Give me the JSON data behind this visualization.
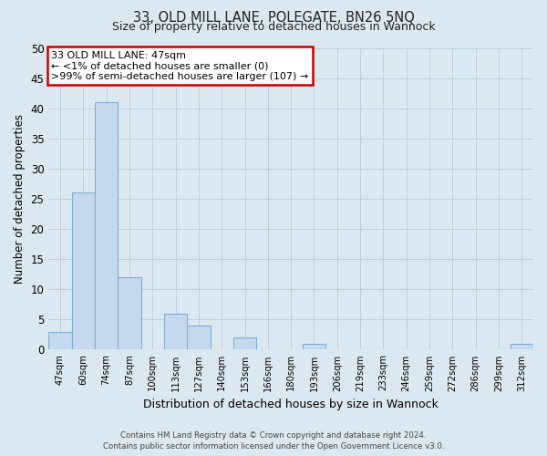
{
  "title": "33, OLD MILL LANE, POLEGATE, BN26 5NQ",
  "subtitle": "Size of property relative to detached houses in Wannock",
  "xlabel": "Distribution of detached houses by size in Wannock",
  "ylabel": "Number of detached properties",
  "bar_labels": [
    "47sqm",
    "60sqm",
    "74sqm",
    "87sqm",
    "100sqm",
    "113sqm",
    "127sqm",
    "140sqm",
    "153sqm",
    "166sqm",
    "180sqm",
    "193sqm",
    "206sqm",
    "219sqm",
    "233sqm",
    "246sqm",
    "259sqm",
    "272sqm",
    "286sqm",
    "299sqm",
    "312sqm"
  ],
  "bar_values": [
    3,
    26,
    41,
    12,
    0,
    6,
    4,
    0,
    2,
    0,
    0,
    1,
    0,
    0,
    0,
    0,
    0,
    0,
    0,
    0,
    1
  ],
  "bar_color": "#c5d8ed",
  "bar_edge_color": "#7fafd4",
  "ylim": [
    0,
    50
  ],
  "yticks": [
    0,
    5,
    10,
    15,
    20,
    25,
    30,
    35,
    40,
    45,
    50
  ],
  "annotation_line1": "33 OLD MILL LANE: 47sqm",
  "annotation_line2": "← <1% of detached houses are smaller (0)",
  "annotation_line3": ">99% of semi-detached houses are larger (107) →",
  "annotation_box_color": "#ffffff",
  "annotation_box_edge_color": "#cc0000",
  "background_color": "#dce8f0",
  "plot_bg_color": "#dce8f0",
  "grid_color": "#b8cfe0",
  "footer_line1": "Contains HM Land Registry data © Crown copyright and database right 2024.",
  "footer_line2": "Contains public sector information licensed under the Open Government Licence v3.0."
}
